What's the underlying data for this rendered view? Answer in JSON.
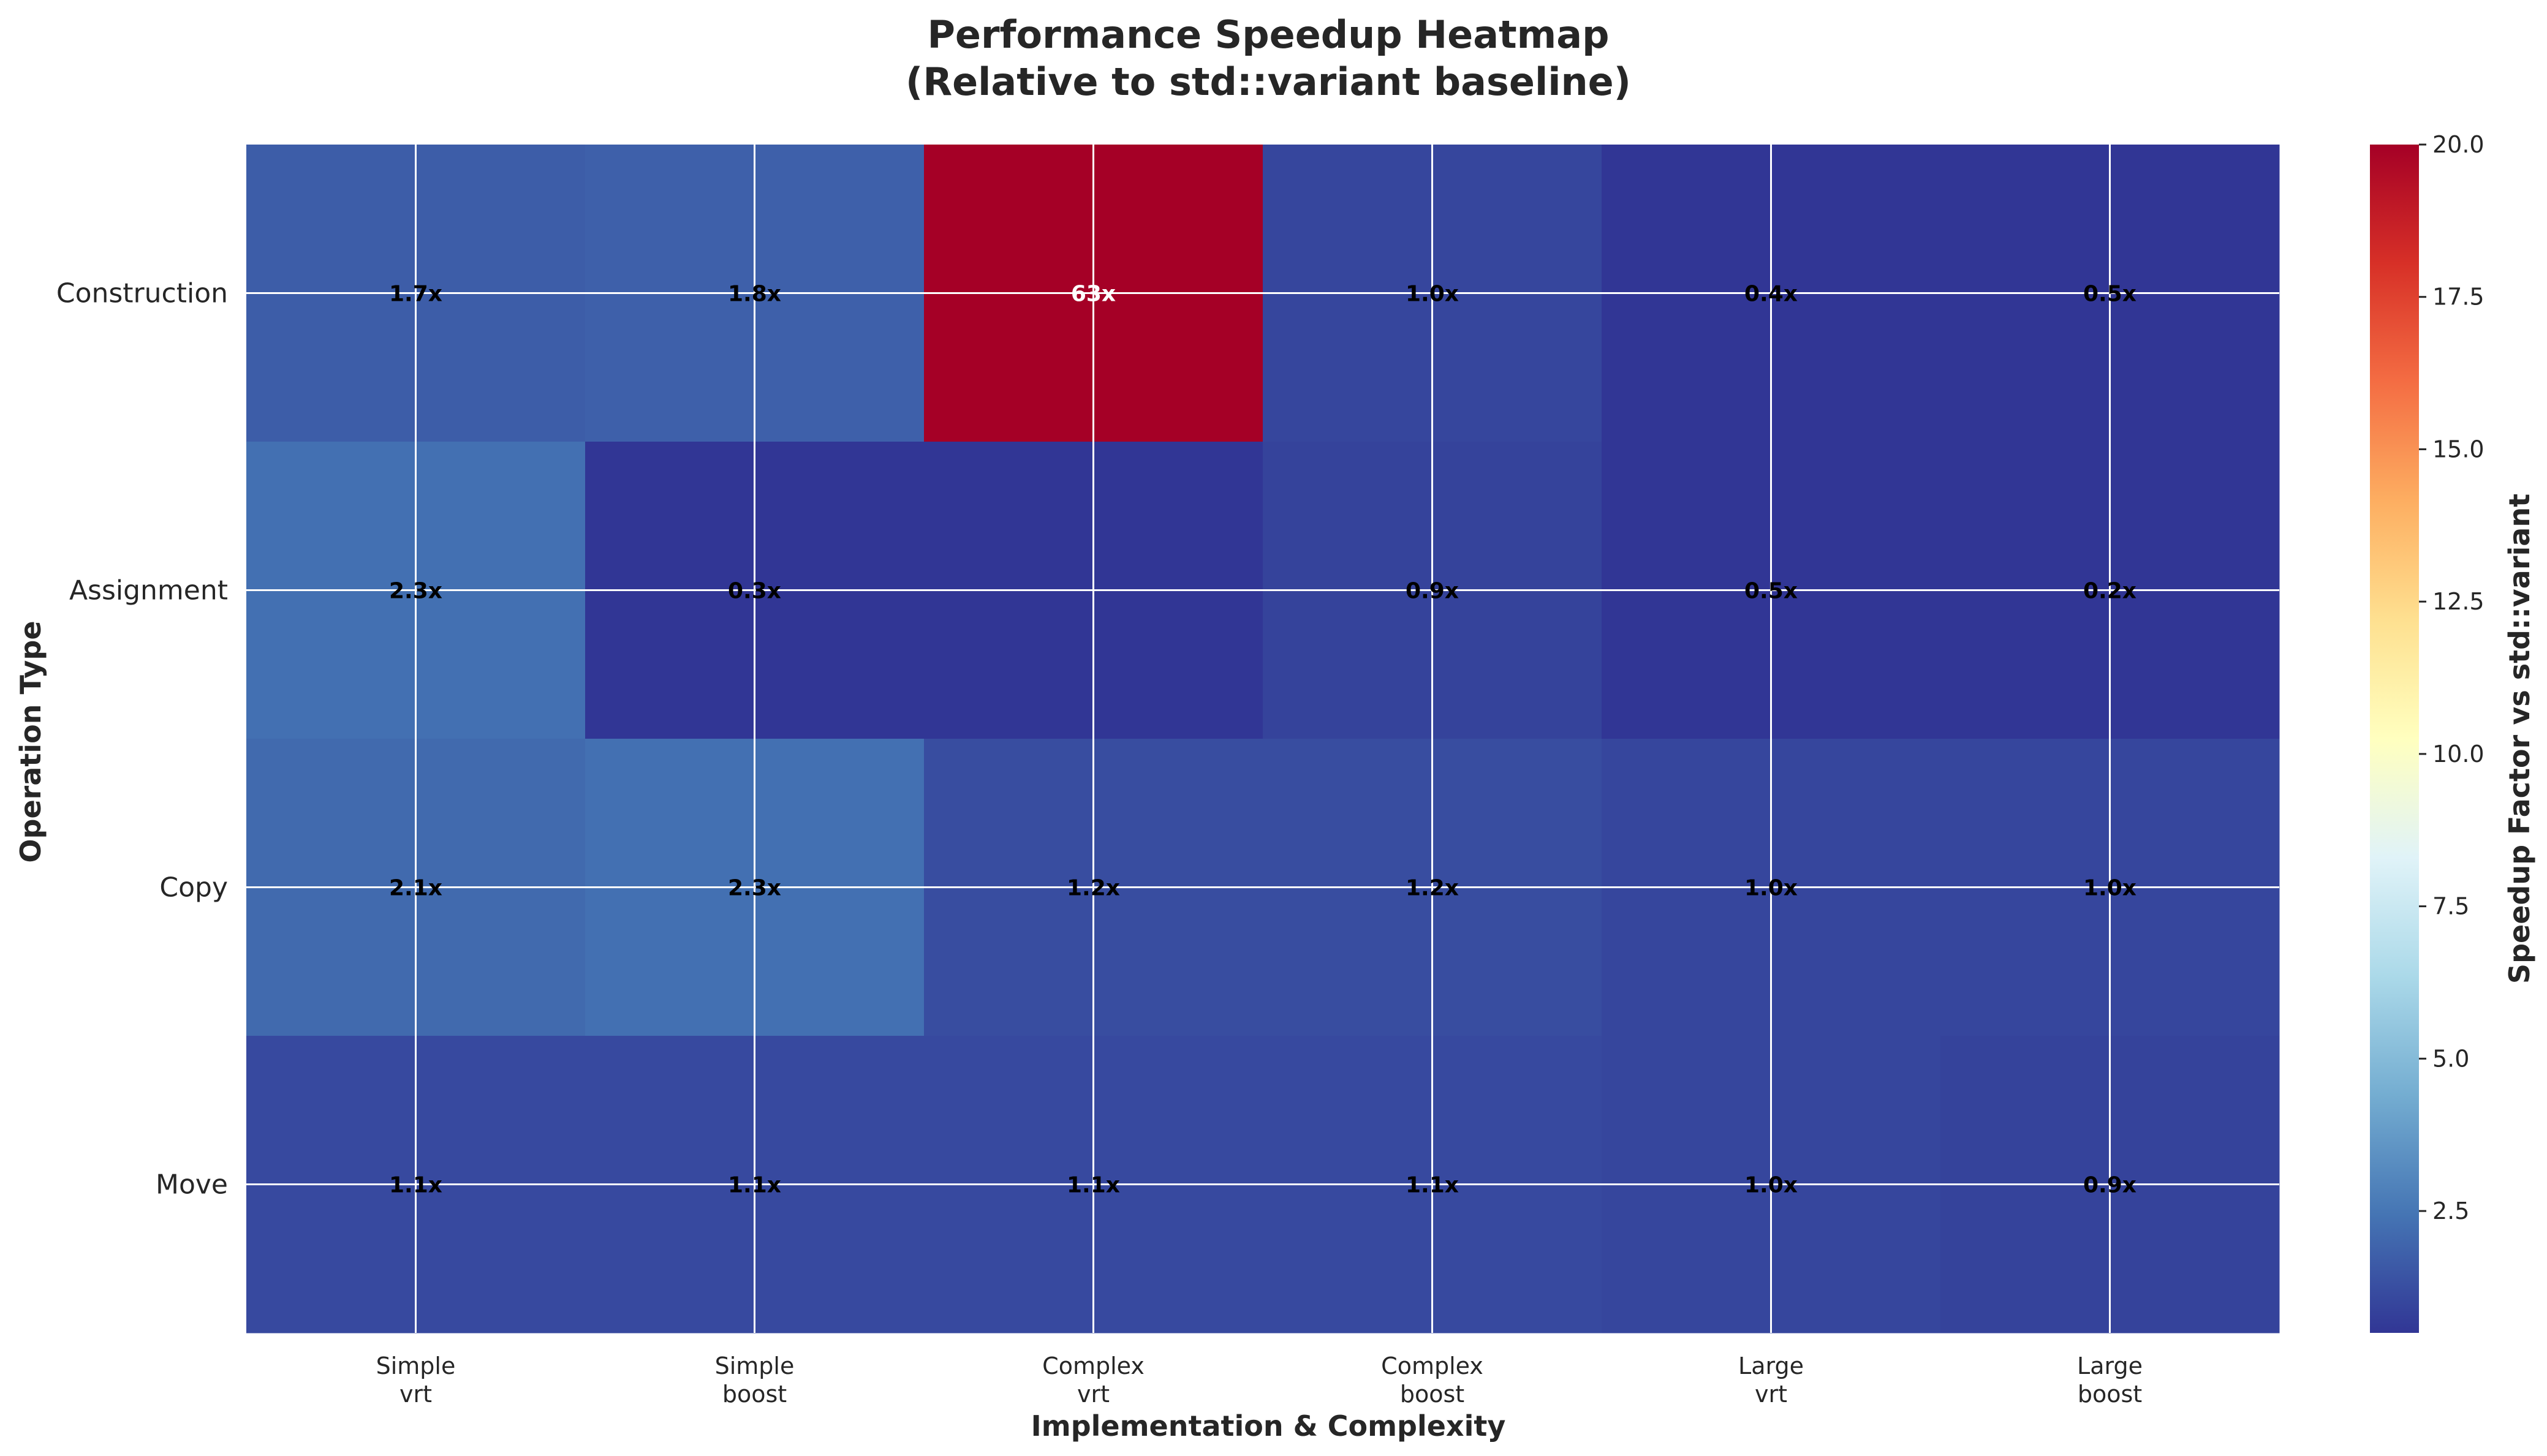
{
  "chart_data": {
    "type": "heatmap",
    "title_lines": [
      "Performance Speedup Heatmap",
      "(Relative to std::variant baseline)"
    ],
    "xlabel": "Implementation & Complexity",
    "ylabel": "Operation Type",
    "rows": [
      "Construction",
      "Assignment",
      "Copy",
      "Move"
    ],
    "columns": [
      {
        "top": "Simple",
        "bottom": "vrt"
      },
      {
        "top": "Simple",
        "bottom": "boost"
      },
      {
        "top": "Complex",
        "bottom": "vrt"
      },
      {
        "top": "Complex",
        "bottom": "boost"
      },
      {
        "top": "Large",
        "bottom": "vrt"
      },
      {
        "top": "Large",
        "bottom": "boost"
      }
    ],
    "values": [
      [
        1.7,
        1.8,
        63,
        1.0,
        0.4,
        0.5
      ],
      [
        2.3,
        0.3,
        0.3,
        0.9,
        0.5,
        0.2
      ],
      [
        2.1,
        2.3,
        1.2,
        1.2,
        1.0,
        1.0
      ],
      [
        1.1,
        1.1,
        1.1,
        1.1,
        1.0,
        0.9
      ]
    ],
    "labels": [
      [
        "1.7x",
        "1.8x",
        "63x",
        "1.0x",
        "0.4x",
        "0.5x"
      ],
      [
        "2.3x",
        "0.3x",
        "",
        "0.9x",
        "0.5x",
        "0.2x"
      ],
      [
        "2.1x",
        "2.3x",
        "1.2x",
        "1.2x",
        "1.0x",
        "1.0x"
      ],
      [
        "1.1x",
        "1.1x",
        "1.1x",
        "1.1x",
        "1.0x",
        "0.9x"
      ]
    ],
    "colormap": "RdYlBu_r",
    "vmin": 0.5,
    "vmax": 20.0,
    "colorbar": {
      "label": "Speedup Factor vs std::variant",
      "ticks": [
        2.5,
        5.0,
        7.5,
        10.0,
        12.5,
        15.0,
        17.5,
        20.0
      ],
      "tick_labels": [
        "2.5",
        "5.0",
        "7.5",
        "10.0",
        "12.5",
        "15.0",
        "17.5",
        "20.0"
      ]
    },
    "grid": true
  }
}
